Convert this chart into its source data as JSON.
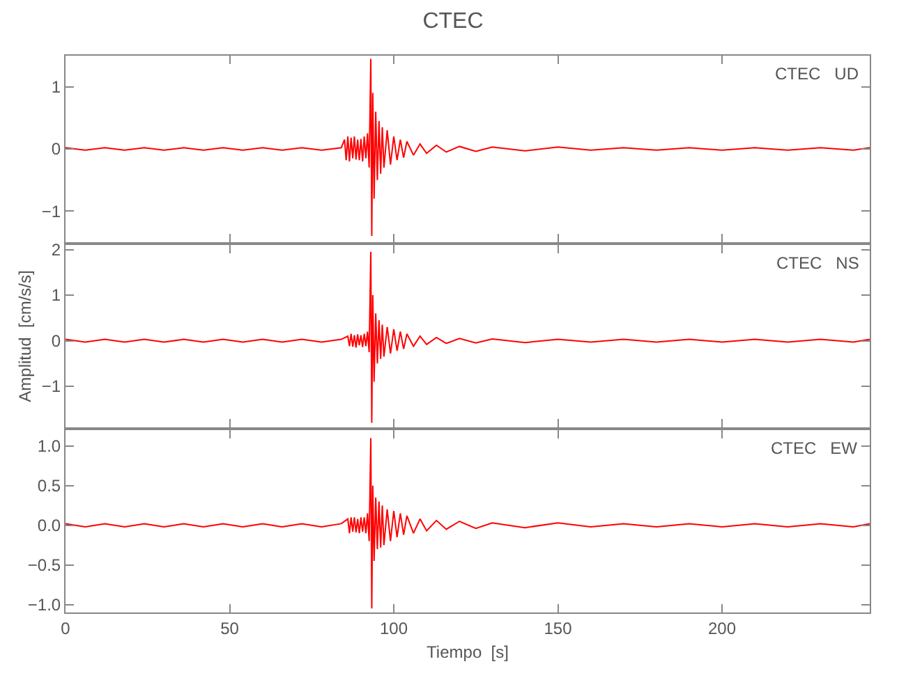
{
  "chart_data": [
    {
      "type": "line",
      "title": "CTEC",
      "annotations": [
        "CTEC   UD"
      ],
      "tick_labels": "y",
      "xlim": [
        0,
        245
      ],
      "xticks": [
        0,
        50,
        100,
        150,
        200
      ],
      "ylim": [
        -1.5,
        1.5
      ],
      "yticks": [
        -1,
        0,
        1
      ],
      "grid": false,
      "x": [
        0,
        6,
        12,
        18,
        24,
        30,
        36,
        42,
        48,
        54,
        60,
        66,
        72,
        78,
        84,
        85,
        85.5,
        86,
        86.5,
        87,
        87.5,
        88,
        88.5,
        89,
        89.5,
        90,
        90.5,
        91,
        91.5,
        92,
        92.5,
        93,
        93.3,
        93.6,
        94,
        94.5,
        95,
        95.5,
        96,
        96.5,
        97,
        98,
        99,
        100,
        101,
        102,
        103,
        104,
        106,
        108,
        110,
        113,
        116,
        120,
        125,
        130,
        140,
        150,
        160,
        170,
        180,
        190,
        200,
        210,
        220,
        230,
        240,
        245
      ],
      "series": [
        {
          "color": "#ff0000",
          "values": [
            0.02,
            -0.02,
            0.02,
            -0.02,
            0.02,
            -0.02,
            0.02,
            -0.02,
            0.02,
            -0.02,
            0.02,
            -0.02,
            0.02,
            -0.02,
            0.02,
            0.15,
            -0.18,
            0.2,
            -0.2,
            0.18,
            -0.15,
            0.2,
            -0.17,
            0.15,
            -0.18,
            0.16,
            -0.2,
            0.2,
            -0.15,
            0.25,
            -0.3,
            1.45,
            -1.4,
            0.9,
            -0.8,
            0.6,
            -0.5,
            0.45,
            -0.4,
            0.35,
            -0.3,
            0.3,
            -0.25,
            0.2,
            -0.18,
            0.15,
            -0.14,
            0.12,
            -0.1,
            0.08,
            -0.07,
            0.06,
            -0.05,
            0.04,
            -0.04,
            0.03,
            -0.03,
            0.03,
            -0.02,
            0.02,
            -0.02,
            0.02,
            -0.02,
            0.02,
            -0.02,
            0.02,
            -0.02,
            0.02
          ]
        }
      ]
    },
    {
      "type": "line",
      "ylabel": "Amplitud  [cm/s/s]",
      "annotations": [
        "CTEC   NS"
      ],
      "tick_labels": "y",
      "xlim": [
        0,
        245
      ],
      "xticks": [
        0,
        50,
        100,
        150,
        200
      ],
      "ylim": [
        -1.9,
        2.1
      ],
      "yticks": [
        -1,
        0,
        1,
        2
      ],
      "grid": false,
      "x": [
        0,
        6,
        12,
        18,
        24,
        30,
        36,
        42,
        48,
        54,
        60,
        66,
        72,
        78,
        84,
        86,
        86.5,
        87,
        87.5,
        88,
        88.5,
        89,
        89.5,
        90,
        90.5,
        91,
        91.5,
        92,
        92.5,
        93,
        93.3,
        93.6,
        94,
        94.5,
        95,
        95.5,
        96,
        96.5,
        97,
        98,
        99,
        100,
        101,
        102,
        103,
        104,
        106,
        108,
        110,
        113,
        116,
        120,
        125,
        130,
        140,
        150,
        160,
        170,
        180,
        190,
        200,
        210,
        220,
        230,
        240,
        245
      ],
      "series": [
        {
          "color": "#ff0000",
          "values": [
            0.03,
            -0.03,
            0.03,
            -0.03,
            0.03,
            -0.03,
            0.03,
            -0.03,
            0.03,
            -0.03,
            0.03,
            -0.03,
            0.03,
            -0.03,
            0.03,
            0.1,
            -0.12,
            0.15,
            -0.13,
            0.12,
            -0.15,
            0.14,
            -0.1,
            0.12,
            -0.14,
            0.15,
            -0.12,
            0.2,
            -0.25,
            1.95,
            -1.8,
            1.0,
            -0.9,
            0.6,
            -0.5,
            0.45,
            -0.4,
            0.35,
            -0.35,
            0.3,
            -0.28,
            0.25,
            -0.22,
            0.2,
            -0.18,
            0.15,
            -0.12,
            0.1,
            -0.08,
            0.07,
            -0.06,
            0.05,
            -0.05,
            0.04,
            -0.04,
            0.03,
            -0.03,
            0.03,
            -0.03,
            0.03,
            -0.03,
            0.03,
            -0.03,
            0.03,
            -0.03,
            0.03
          ]
        }
      ]
    },
    {
      "type": "line",
      "xlabel": "Tiempo  [s]",
      "annotations": [
        "CTEC   EW"
      ],
      "xlim": [
        0,
        245
      ],
      "xticks": [
        0,
        50,
        100,
        150,
        200
      ],
      "ylim": [
        -1.1,
        1.2
      ],
      "yticks": [
        {
          "value": -1,
          "label": "−1.0"
        },
        -0.5,
        {
          "value": 0,
          "label": "0.0"
        },
        0.5,
        {
          "value": 1,
          "label": "1.0"
        }
      ],
      "grid": false,
      "x": [
        0,
        6,
        12,
        18,
        24,
        30,
        36,
        42,
        48,
        54,
        60,
        66,
        72,
        78,
        84,
        86,
        86.5,
        87,
        87.5,
        88,
        88.5,
        89,
        89.5,
        90,
        90.5,
        91,
        91.5,
        92,
        92.5,
        93,
        93.3,
        93.6,
        94,
        94.5,
        95,
        95.5,
        96,
        96.5,
        97,
        98,
        99,
        100,
        101,
        102,
        103,
        104,
        106,
        108,
        110,
        113,
        116,
        120,
        125,
        130,
        140,
        150,
        160,
        170,
        180,
        190,
        200,
        210,
        220,
        230,
        240,
        245
      ],
      "series": [
        {
          "color": "#ff0000",
          "values": [
            0.02,
            -0.02,
            0.02,
            -0.02,
            0.02,
            -0.02,
            0.02,
            -0.02,
            0.02,
            -0.02,
            0.02,
            -0.02,
            0.02,
            -0.02,
            0.02,
            0.08,
            -0.1,
            0.1,
            -0.08,
            0.1,
            -0.09,
            0.08,
            -0.1,
            0.1,
            -0.08,
            0.1,
            -0.1,
            0.15,
            -0.2,
            1.1,
            -1.05,
            0.5,
            -0.45,
            0.35,
            -0.3,
            0.3,
            -0.28,
            0.25,
            -0.25,
            0.2,
            -0.2,
            0.18,
            -0.15,
            0.15,
            -0.12,
            0.12,
            -0.1,
            0.08,
            -0.07,
            0.06,
            -0.05,
            0.05,
            -0.04,
            0.03,
            -0.03,
            0.03,
            -0.02,
            0.02,
            -0.02,
            0.02,
            -0.02,
            0.02,
            -0.02,
            0.02,
            -0.02,
            0.02
          ]
        }
      ]
    }
  ]
}
